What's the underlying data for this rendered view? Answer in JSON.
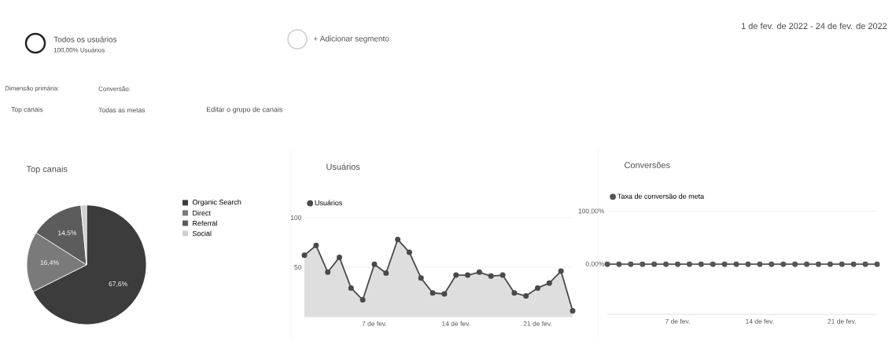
{
  "chart_data": [
    {
      "type": "pie",
      "title": "Top canais",
      "categories": [
        "Organic Search",
        "Direct",
        "Referral",
        "Social"
      ],
      "values": [
        67.6,
        16.4,
        14.5,
        1.5
      ],
      "value_labels": [
        "67,6%",
        "16,4%",
        "14,5%",
        null
      ],
      "colors": [
        "#3c3c3c",
        "#7a7a7a",
        "#5c5c5c",
        "#d0d0d0"
      ],
      "legend": "right",
      "annotations": [
        "Todos os usuários",
        "100,00% Usuários",
        "+ Adicionar segmento",
        "Dimensão primária:",
        "Conversão:",
        "Top canais",
        "Todas as metas",
        "Editar o grupo de canais",
        "1 de fev. de 2022 - 24 de fev. de 2022"
      ]
    },
    {
      "type": "area",
      "title": "Usuários",
      "x": [
        "2022-02-01",
        "2022-02-02",
        "2022-02-03",
        "2022-02-04",
        "2022-02-05",
        "2022-02-06",
        "2022-02-07",
        "2022-02-08",
        "2022-02-09",
        "2022-02-10",
        "2022-02-11",
        "2022-02-12",
        "2022-02-13",
        "2022-02-14",
        "2022-02-15",
        "2022-02-16",
        "2022-02-17",
        "2022-02-18",
        "2022-02-19",
        "2022-02-20",
        "2022-02-21",
        "2022-02-22",
        "2022-02-23",
        "2022-02-24"
      ],
      "series": [
        {
          "name": "Usuários",
          "color": "#4a4a4a",
          "values": [
            62,
            72,
            45,
            60,
            29,
            17,
            53,
            44,
            78,
            65,
            39,
            24,
            23,
            42,
            42,
            45,
            41,
            42,
            24,
            21,
            29,
            34,
            46,
            6
          ]
        }
      ],
      "xlim": [
        "2022-02-01",
        "2022-02-24"
      ],
      "xticks": [
        {
          "value": "2022-02-07",
          "label": "7 de fev."
        },
        {
          "value": "2022-02-14",
          "label": "14 de fev."
        },
        {
          "value": "2022-02-21",
          "label": "21 de fev."
        }
      ],
      "ylim": [
        0,
        100
      ],
      "yticks": [
        50,
        100
      ],
      "grid": "y",
      "legend": "top left",
      "marker": "circle"
    },
    {
      "type": "line",
      "title": "Conversões",
      "x": [
        "2022-02-01",
        "2022-02-02",
        "2022-02-03",
        "2022-02-04",
        "2022-02-05",
        "2022-02-06",
        "2022-02-07",
        "2022-02-08",
        "2022-02-09",
        "2022-02-10",
        "2022-02-11",
        "2022-02-12",
        "2022-02-13",
        "2022-02-14",
        "2022-02-15",
        "2022-02-16",
        "2022-02-17",
        "2022-02-18",
        "2022-02-19",
        "2022-02-20",
        "2022-02-21",
        "2022-02-22",
        "2022-02-23",
        "2022-02-24"
      ],
      "series": [
        {
          "name": "Taxa de conversão de meta",
          "color": "#555555",
          "values": [
            0,
            0,
            0,
            0,
            0,
            0,
            0,
            0,
            0,
            0,
            0,
            0,
            0,
            0,
            0,
            0,
            0,
            0,
            0,
            0,
            0,
            0,
            0,
            0
          ]
        }
      ],
      "xlim": [
        "2022-02-01",
        "2022-02-24"
      ],
      "xticks": [
        {
          "value": "2022-02-07",
          "label": "7 de fev."
        },
        {
          "value": "2022-02-14",
          "label": "14 de fev."
        },
        {
          "value": "2022-02-21",
          "label": "21 de fev."
        }
      ],
      "ylim": [
        -95,
        100
      ],
      "yticks": [
        {
          "value": 0,
          "label": "0,00%"
        },
        {
          "value": 100,
          "label": "100,00%"
        }
      ],
      "grid": "y",
      "legend": "top left",
      "marker": "circle"
    }
  ]
}
